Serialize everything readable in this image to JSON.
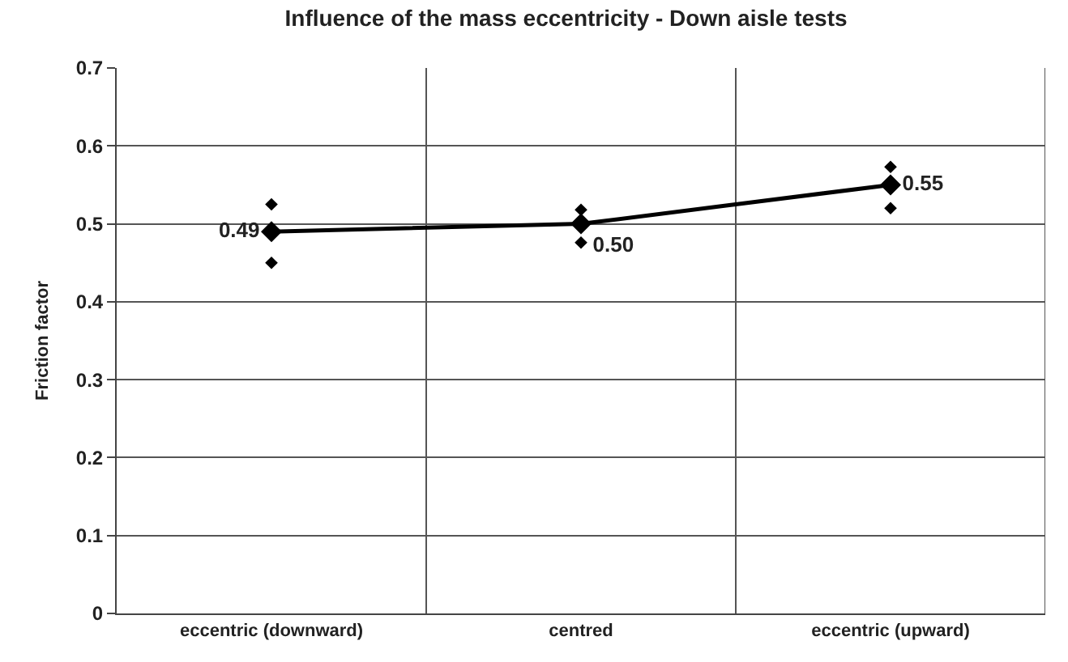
{
  "chart_data": {
    "type": "line",
    "title": "Influence of the mass eccentricity - Down aisle tests",
    "ylabel": "Friction factor",
    "categories": [
      "eccentric (downward)",
      "centred",
      "eccentric (upward)"
    ],
    "series": [
      {
        "color": "#000000",
        "marker": "diamond",
        "values": [
          0.49,
          0.5,
          0.55
        ],
        "value_labels": [
          "0.49",
          "0.50",
          "0.55"
        ]
      },
      {
        "type": "scatter",
        "color": "#000000",
        "marker": "diamond",
        "values": [
          0.525,
          0.518,
          0.573
        ]
      },
      {
        "type": "scatter",
        "color": "#000000",
        "marker": "diamond",
        "values": [
          0.45,
          0.476,
          0.52
        ]
      }
    ],
    "ylim": [
      0,
      0.7
    ],
    "yticks": [
      0,
      0.1,
      0.2,
      0.3,
      0.4,
      0.5,
      0.6,
      0.7
    ],
    "grid": true,
    "line_style": "solid"
  }
}
